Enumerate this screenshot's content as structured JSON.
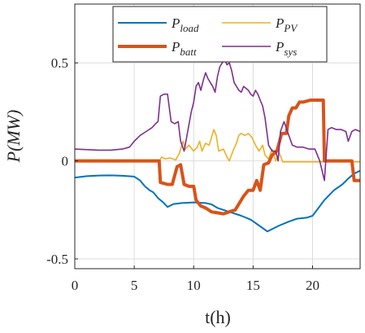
{
  "chart_data": {
    "type": "line",
    "title": "",
    "xlabel": "t(h)",
    "ylabel": "P(MW)",
    "xlim": [
      0,
      24
    ],
    "ylim": [
      -0.55,
      0.8
    ],
    "grid": true,
    "legend_position": "top",
    "legend_columns": 2,
    "xticks": [
      0,
      5,
      10,
      15,
      20
    ],
    "yticks": [
      -0.5,
      0,
      0.5
    ],
    "xtick_labels": [
      "0",
      "5",
      "10",
      "15",
      "20"
    ],
    "ytick_labels": [
      "-0.5",
      "0",
      "0.5"
    ],
    "series": [
      {
        "name": "P_load",
        "legend_main": "P",
        "legend_sub": "load",
        "color": "#0072BD",
        "width": 2,
        "points": [
          [
            0,
            -0.085
          ],
          [
            1,
            -0.078
          ],
          [
            2,
            -0.075
          ],
          [
            3,
            -0.074
          ],
          [
            4,
            -0.076
          ],
          [
            5,
            -0.08
          ],
          [
            5.5,
            -0.1
          ],
          [
            5.9,
            -0.13
          ],
          [
            6.3,
            -0.15
          ],
          [
            6.6,
            -0.16
          ],
          [
            7,
            -0.19
          ],
          [
            7.4,
            -0.21
          ],
          [
            7.8,
            -0.235
          ],
          [
            8.3,
            -0.22
          ],
          [
            9,
            -0.215
          ],
          [
            10,
            -0.212
          ],
          [
            11,
            -0.215
          ],
          [
            11.5,
            -0.222
          ],
          [
            12,
            -0.24
          ],
          [
            13,
            -0.26
          ],
          [
            14,
            -0.28
          ],
          [
            14.8,
            -0.3
          ],
          [
            15.5,
            -0.33
          ],
          [
            16.2,
            -0.36
          ],
          [
            16.7,
            -0.345
          ],
          [
            17.2,
            -0.33
          ],
          [
            18,
            -0.31
          ],
          [
            18.7,
            -0.295
          ],
          [
            19.5,
            -0.29
          ],
          [
            20,
            -0.28
          ],
          [
            20.5,
            -0.24
          ],
          [
            21,
            -0.2
          ],
          [
            21.8,
            -0.15
          ],
          [
            22.5,
            -0.12
          ],
          [
            23,
            -0.09
          ],
          [
            23.5,
            -0.065
          ],
          [
            24,
            -0.05
          ]
        ]
      },
      {
        "name": "P_PV",
        "legend_main": "P",
        "legend_sub": "PV",
        "color": "#EDB120",
        "width": 1.6,
        "points": [
          [
            0,
            -0.005
          ],
          [
            7.1,
            -0.005
          ],
          [
            7.3,
            0.02
          ],
          [
            7.6,
            0.01
          ],
          [
            8,
            0.015
          ],
          [
            8.5,
            0.005
          ],
          [
            8.8,
            0.04
          ],
          [
            9.1,
            0.1
          ],
          [
            9.3,
            0.06
          ],
          [
            9.6,
            0.08
          ],
          [
            10,
            0.05
          ],
          [
            10.3,
            0.07
          ],
          [
            10.5,
            0.1
          ],
          [
            10.7,
            0.05
          ],
          [
            11,
            0.09
          ],
          [
            11.3,
            0.08
          ],
          [
            11.5,
            0.12
          ],
          [
            11.7,
            0.16
          ],
          [
            11.9,
            0.13
          ],
          [
            12.1,
            0.05
          ],
          [
            12.5,
            0.06
          ],
          [
            12.8,
            0.02
          ],
          [
            13,
            0.0
          ],
          [
            13.3,
            0.05
          ],
          [
            13.6,
            0.09
          ],
          [
            13.8,
            0.13
          ],
          [
            14,
            0.14
          ],
          [
            14.3,
            0.13
          ],
          [
            14.6,
            0.14
          ],
          [
            14.9,
            0.12
          ],
          [
            15.2,
            0.08
          ],
          [
            15.5,
            0.05
          ],
          [
            15.8,
            0.08
          ],
          [
            16,
            0.03
          ],
          [
            16.3,
            0.01
          ],
          [
            16.6,
            0.06
          ],
          [
            16.9,
            0.0
          ],
          [
            17.2,
            0.04
          ],
          [
            17.5,
            -0.005
          ],
          [
            24,
            -0.005
          ]
        ]
      },
      {
        "name": "P_batt",
        "legend_main": "P",
        "legend_sub": "batt",
        "color": "#D95319",
        "width": 4,
        "points": [
          [
            0,
            0.0
          ],
          [
            7.1,
            0.0
          ],
          [
            7.2,
            -0.11
          ],
          [
            7.8,
            -0.12
          ],
          [
            8.2,
            -0.12
          ],
          [
            8.6,
            -0.03
          ],
          [
            8.9,
            -0.02
          ],
          [
            9.2,
            -0.12
          ],
          [
            9.6,
            -0.13
          ],
          [
            10,
            -0.13
          ],
          [
            10.2,
            -0.2
          ],
          [
            10.6,
            -0.23
          ],
          [
            11,
            -0.24
          ],
          [
            11.5,
            -0.26
          ],
          [
            12,
            -0.265
          ],
          [
            12.5,
            -0.27
          ],
          [
            13,
            -0.26
          ],
          [
            13.5,
            -0.25
          ],
          [
            13.8,
            -0.22
          ],
          [
            14.2,
            -0.18
          ],
          [
            14.6,
            -0.15
          ],
          [
            15,
            -0.15
          ],
          [
            15.3,
            -0.1
          ],
          [
            15.6,
            -0.15
          ],
          [
            15.9,
            -0.02
          ],
          [
            16.3,
            -0.01
          ],
          [
            16.6,
            0.03
          ],
          [
            17,
            0.05
          ],
          [
            17.4,
            0.14
          ],
          [
            17.8,
            0.14
          ],
          [
            18,
            0.23
          ],
          [
            18.3,
            0.27
          ],
          [
            18.6,
            0.27
          ],
          [
            18.9,
            0.3
          ],
          [
            19.2,
            0.3
          ],
          [
            19.8,
            0.31
          ],
          [
            20.5,
            0.31
          ],
          [
            20.9,
            0.31
          ],
          [
            21,
            0.0
          ],
          [
            23.3,
            0.0
          ],
          [
            23.5,
            -0.1
          ],
          [
            24,
            -0.1
          ]
        ]
      },
      {
        "name": "P_sys",
        "legend_main": "P",
        "legend_sub": "sys",
        "color": "#7E2F8E",
        "width": 1.6,
        "points": [
          [
            0,
            0.06
          ],
          [
            2,
            0.055
          ],
          [
            3,
            0.055
          ],
          [
            4,
            0.06
          ],
          [
            4.6,
            0.07
          ],
          [
            5,
            0.1
          ],
          [
            5.5,
            0.13
          ],
          [
            6,
            0.15
          ],
          [
            6.5,
            0.17
          ],
          [
            6.8,
            0.19
          ],
          [
            7,
            0.2
          ],
          [
            7.2,
            0.33
          ],
          [
            7.5,
            0.34
          ],
          [
            7.8,
            0.34
          ],
          [
            8.1,
            0.2
          ],
          [
            8.4,
            0.19
          ],
          [
            8.7,
            0.2
          ],
          [
            8.9,
            0.1
          ],
          [
            9.2,
            0.05
          ],
          [
            9.5,
            0.15
          ],
          [
            9.8,
            0.25
          ],
          [
            10,
            0.3
          ],
          [
            10.2,
            0.38
          ],
          [
            10.4,
            0.4
          ],
          [
            10.6,
            0.36
          ],
          [
            10.8,
            0.41
          ],
          [
            11,
            0.45
          ],
          [
            11.2,
            0.42
          ],
          [
            11.4,
            0.4
          ],
          [
            11.6,
            0.38
          ],
          [
            11.8,
            0.35
          ],
          [
            12,
            0.43
          ],
          [
            12.2,
            0.48
          ],
          [
            12.4,
            0.5
          ],
          [
            12.6,
            0.52
          ],
          [
            12.8,
            0.49
          ],
          [
            13,
            0.5
          ],
          [
            13.2,
            0.46
          ],
          [
            13.4,
            0.4
          ],
          [
            13.6,
            0.38
          ],
          [
            13.8,
            0.36
          ],
          [
            14,
            0.35
          ],
          [
            14.2,
            0.38
          ],
          [
            14.4,
            0.37
          ],
          [
            14.6,
            0.36
          ],
          [
            14.8,
            0.34
          ],
          [
            15,
            0.33
          ],
          [
            15.2,
            0.36
          ],
          [
            15.4,
            0.34
          ],
          [
            15.6,
            0.31
          ],
          [
            15.8,
            0.28
          ],
          [
            16,
            0.22
          ],
          [
            16.3,
            0.08
          ],
          [
            16.6,
            0.05
          ],
          [
            16.9,
            0.05
          ],
          [
            17.1,
            0.0
          ],
          [
            17.3,
            0.15
          ],
          [
            17.6,
            0.2
          ],
          [
            18,
            0.13
          ],
          [
            18.3,
            0.08
          ],
          [
            18.7,
            0.07
          ],
          [
            19.2,
            0.07
          ],
          [
            19.7,
            0.06
          ],
          [
            20.2,
            0.06
          ],
          [
            20.6,
            0.0
          ],
          [
            21,
            -0.1
          ],
          [
            21.3,
            0.16
          ],
          [
            21.6,
            0.17
          ],
          [
            22,
            0.16
          ],
          [
            22.4,
            0.16
          ],
          [
            22.8,
            0.15
          ],
          [
            23,
            0.1
          ],
          [
            23.3,
            0.15
          ],
          [
            23.6,
            0.16
          ],
          [
            24,
            0.15
          ]
        ]
      }
    ]
  }
}
